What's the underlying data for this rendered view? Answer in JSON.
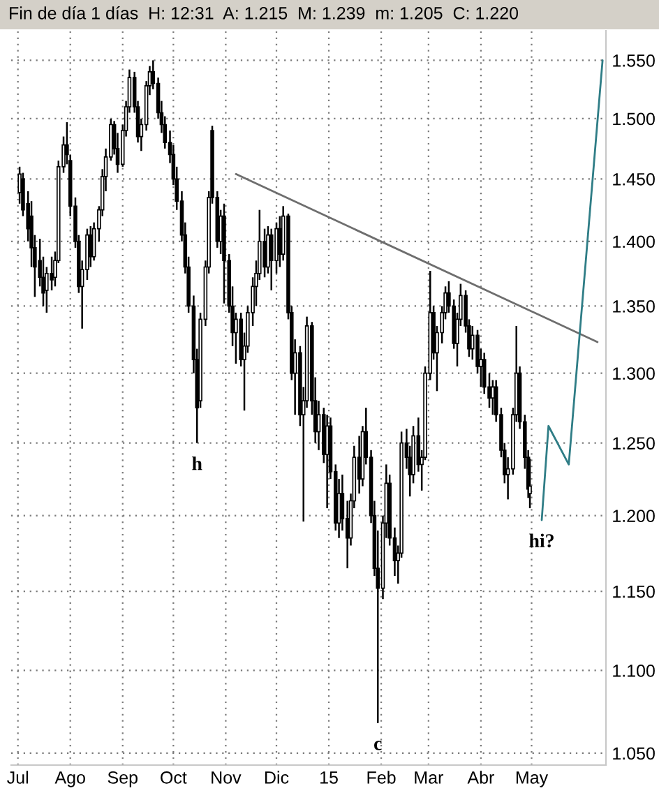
{
  "chart_data": {
    "type": "candlestick",
    "title": "Fin de día 1 días  H: 12:31  A: 1.215  M: 1.239  m: 1.205  C: 1.220",
    "x": [
      "2014-07-02",
      "2014-07-04",
      "2014-07-07",
      "2014-07-09",
      "2014-07-11",
      "2014-07-14",
      "2014-07-16",
      "2014-07-18",
      "2014-07-21",
      "2014-07-23",
      "2014-07-25",
      "2014-07-28",
      "2014-07-30",
      "2014-08-01",
      "2014-08-04",
      "2014-08-06",
      "2014-08-08",
      "2014-08-11",
      "2014-08-13",
      "2014-08-15",
      "2014-08-18",
      "2014-08-20",
      "2014-08-22",
      "2014-08-25",
      "2014-08-27",
      "2014-08-29",
      "2014-09-01",
      "2014-09-03",
      "2014-09-05",
      "2014-09-08",
      "2014-09-10",
      "2014-09-12",
      "2014-09-15",
      "2014-09-17",
      "2014-09-19",
      "2014-09-22",
      "2014-09-24",
      "2014-09-26",
      "2014-09-29",
      "2014-10-01",
      "2014-10-03",
      "2014-10-06",
      "2014-10-08",
      "2014-10-10",
      "2014-10-13",
      "2014-10-15",
      "2014-10-17",
      "2014-10-20",
      "2014-10-22",
      "2014-10-24",
      "2014-10-27",
      "2014-10-29",
      "2014-10-31",
      "2014-11-03",
      "2014-11-05",
      "2014-11-07",
      "2014-11-10",
      "2014-11-12",
      "2014-11-14",
      "2014-11-17",
      "2014-11-19",
      "2014-11-21",
      "2014-11-24",
      "2014-11-26",
      "2014-11-28",
      "2014-12-01",
      "2014-12-03",
      "2014-12-05",
      "2014-12-08",
      "2014-12-10",
      "2014-12-12",
      "2014-12-15",
      "2014-12-17",
      "2014-12-19",
      "2014-12-22",
      "2014-12-24",
      "2014-12-26",
      "2014-12-29",
      "2014-12-31",
      "2015-01-02",
      "2015-01-05",
      "2015-01-07",
      "2015-01-09",
      "2015-01-12",
      "2015-01-14",
      "2015-01-16",
      "2015-01-19",
      "2015-01-21",
      "2015-01-23",
      "2015-01-26",
      "2015-01-28",
      "2015-01-30",
      "2015-02-02",
      "2015-02-04",
      "2015-02-06",
      "2015-02-09",
      "2015-02-11",
      "2015-02-13",
      "2015-02-16",
      "2015-02-18",
      "2015-02-20",
      "2015-02-23",
      "2015-02-25",
      "2015-02-27",
      "2015-03-02",
      "2015-03-04",
      "2015-03-06",
      "2015-03-09",
      "2015-03-11",
      "2015-03-13",
      "2015-03-16",
      "2015-03-18",
      "2015-03-20",
      "2015-03-23",
      "2015-03-25",
      "2015-03-27",
      "2015-03-30",
      "2015-04-01",
      "2015-04-03",
      "2015-04-06",
      "2015-04-08",
      "2015-04-10",
      "2015-04-13",
      "2015-04-15",
      "2015-04-17",
      "2015-04-20",
      "2015-04-22",
      "2015-04-24",
      "2015-04-27",
      "2015-04-29",
      "2015-04-30"
    ],
    "ohlc": [
      [
        1.439,
        1.46,
        1.43,
        1.454
      ],
      [
        1.45,
        1.455,
        1.42,
        1.425
      ],
      [
        1.43,
        1.44,
        1.4,
        1.41
      ],
      [
        1.42,
        1.432,
        1.38,
        1.395
      ],
      [
        1.395,
        1.405,
        1.357,
        1.38
      ],
      [
        1.385,
        1.402,
        1.365,
        1.372
      ],
      [
        1.372,
        1.388,
        1.35,
        1.36
      ],
      [
        1.362,
        1.38,
        1.345,
        1.375
      ],
      [
        1.375,
        1.388,
        1.362,
        1.37
      ],
      [
        1.372,
        1.392,
        1.365,
        1.385
      ],
      [
        1.385,
        1.465,
        1.383,
        1.46
      ],
      [
        1.46,
        1.485,
        1.455,
        1.478
      ],
      [
        1.478,
        1.497,
        1.462,
        1.47
      ],
      [
        1.465,
        1.47,
        1.42,
        1.428
      ],
      [
        1.428,
        1.435,
        1.395,
        1.4
      ],
      [
        1.4,
        1.405,
        1.36,
        1.365
      ],
      [
        1.365,
        1.385,
        1.333,
        1.378
      ],
      [
        1.378,
        1.41,
        1.37,
        1.405
      ],
      [
        1.405,
        1.412,
        1.38,
        1.388
      ],
      [
        1.388,
        1.415,
        1.385,
        1.41
      ],
      [
        1.41,
        1.428,
        1.4,
        1.425
      ],
      [
        1.425,
        1.458,
        1.42,
        1.452
      ],
      [
        1.452,
        1.475,
        1.44,
        1.468
      ],
      [
        1.468,
        1.5,
        1.465,
        1.495
      ],
      [
        1.495,
        1.498,
        1.47,
        1.475
      ],
      [
        1.475,
        1.488,
        1.455,
        1.462
      ],
      [
        1.462,
        1.495,
        1.46,
        1.49
      ],
      [
        1.49,
        1.515,
        1.485,
        1.51
      ],
      [
        1.51,
        1.542,
        1.505,
        1.535
      ],
      [
        1.535,
        1.54,
        1.505,
        1.51
      ],
      [
        1.51,
        1.515,
        1.48,
        1.485
      ],
      [
        1.485,
        1.5,
        1.473,
        1.495
      ],
      [
        1.495,
        1.532,
        1.49,
        1.528
      ],
      [
        1.528,
        1.545,
        1.52,
        1.54
      ],
      [
        1.54,
        1.55,
        1.525,
        1.53
      ],
      [
        1.53,
        1.535,
        1.5,
        1.505
      ],
      [
        1.505,
        1.515,
        1.488,
        1.495
      ],
      [
        1.495,
        1.502,
        1.475,
        1.48
      ],
      [
        1.48,
        1.49,
        1.463,
        1.47
      ],
      [
        1.47,
        1.478,
        1.445,
        1.45
      ],
      [
        1.45,
        1.46,
        1.425,
        1.432
      ],
      [
        1.432,
        1.44,
        1.4,
        1.405
      ],
      [
        1.405,
        1.415,
        1.375,
        1.38
      ],
      [
        1.38,
        1.388,
        1.345,
        1.35
      ],
      [
        1.35,
        1.358,
        1.3,
        1.31
      ],
      [
        1.31,
        1.318,
        1.25,
        1.275
      ],
      [
        1.28,
        1.345,
        1.275,
        1.34
      ],
      [
        1.34,
        1.385,
        1.335,
        1.38
      ],
      [
        1.38,
        1.44,
        1.375,
        1.435
      ],
      [
        1.49,
        1.494,
        1.43,
        1.435
      ],
      [
        1.435,
        1.44,
        1.395,
        1.4
      ],
      [
        1.4,
        1.425,
        1.39,
        1.42
      ],
      [
        1.42,
        1.43,
        1.352,
        1.385
      ],
      [
        1.385,
        1.39,
        1.345,
        1.35
      ],
      [
        1.35,
        1.365,
        1.32,
        1.33
      ],
      [
        1.33,
        1.345,
        1.307,
        1.34
      ],
      [
        1.34,
        1.345,
        1.305,
        1.31
      ],
      [
        1.31,
        1.33,
        1.273,
        1.32
      ],
      [
        1.32,
        1.35,
        1.315,
        1.345
      ],
      [
        1.345,
        1.372,
        1.335,
        1.365
      ],
      [
        1.365,
        1.385,
        1.35,
        1.375
      ],
      [
        1.375,
        1.425,
        1.37,
        1.4
      ],
      [
        1.4,
        1.41,
        1.372,
        1.38
      ],
      [
        1.38,
        1.412,
        1.375,
        1.405
      ],
      [
        1.405,
        1.41,
        1.362,
        1.385
      ],
      [
        1.385,
        1.415,
        1.375,
        1.41
      ],
      [
        1.41,
        1.42,
        1.38,
        1.39
      ],
      [
        1.39,
        1.428,
        1.385,
        1.42
      ],
      [
        1.42,
        1.422,
        1.34,
        1.345
      ],
      [
        1.345,
        1.35,
        1.295,
        1.3
      ],
      [
        1.3,
        1.325,
        1.27,
        1.315
      ],
      [
        1.315,
        1.32,
        1.262,
        1.27
      ],
      [
        1.27,
        1.29,
        1.196,
        1.28
      ],
      [
        1.28,
        1.342,
        1.275,
        1.335
      ],
      [
        1.335,
        1.338,
        1.27,
        1.28
      ],
      [
        1.28,
        1.297,
        1.25,
        1.258
      ],
      [
        1.258,
        1.28,
        1.245,
        1.27
      ],
      [
        1.27,
        1.275,
        1.236,
        1.242
      ],
      [
        1.242,
        1.27,
        1.205,
        1.262
      ],
      [
        1.262,
        1.268,
        1.225,
        1.23
      ],
      [
        1.23,
        1.235,
        1.19,
        1.195
      ],
      [
        1.195,
        1.225,
        1.185,
        1.215
      ],
      [
        1.215,
        1.228,
        1.19,
        1.198
      ],
      [
        1.198,
        1.21,
        1.165,
        1.185
      ],
      [
        1.185,
        1.215,
        1.18,
        1.21
      ],
      [
        1.21,
        1.248,
        1.205,
        1.24
      ],
      [
        1.24,
        1.255,
        1.215,
        1.225
      ],
      [
        1.225,
        1.262,
        1.22,
        1.258
      ],
      [
        1.258,
        1.275,
        1.235,
        1.24
      ],
      [
        1.24,
        1.245,
        1.195,
        1.2
      ],
      [
        1.2,
        1.21,
        1.16,
        1.165
      ],
      [
        1.165,
        1.19,
        1.068,
        1.152
      ],
      [
        1.152,
        1.2,
        1.145,
        1.195
      ],
      [
        1.195,
        1.235,
        1.185,
        1.222
      ],
      [
        1.222,
        1.228,
        1.18,
        1.185
      ],
      [
        1.185,
        1.192,
        1.16,
        1.17
      ],
      [
        1.17,
        1.18,
        1.155,
        1.175
      ],
      [
        1.175,
        1.258,
        1.172,
        1.25
      ],
      [
        1.25,
        1.26,
        1.232,
        1.24
      ],
      [
        1.24,
        1.248,
        1.213,
        1.228
      ],
      [
        1.228,
        1.262,
        1.222,
        1.255
      ],
      [
        1.255,
        1.268,
        1.23,
        1.235
      ],
      [
        1.235,
        1.245,
        1.217,
        1.24
      ],
      [
        1.24,
        1.305,
        1.238,
        1.3
      ],
      [
        1.3,
        1.377,
        1.295,
        1.345
      ],
      [
        1.345,
        1.35,
        1.31,
        1.315
      ],
      [
        1.315,
        1.335,
        1.287,
        1.33
      ],
      [
        1.33,
        1.35,
        1.322,
        1.345
      ],
      [
        1.345,
        1.365,
        1.34,
        1.36
      ],
      [
        1.36,
        1.369,
        1.345,
        1.35
      ],
      [
        1.35,
        1.355,
        1.318,
        1.322
      ],
      [
        1.322,
        1.345,
        1.305,
        1.34
      ],
      [
        1.34,
        1.367,
        1.335,
        1.358
      ],
      [
        1.358,
        1.362,
        1.33,
        1.335
      ],
      [
        1.335,
        1.34,
        1.312,
        1.318
      ],
      [
        1.318,
        1.335,
        1.31,
        1.328
      ],
      [
        1.328,
        1.332,
        1.3,
        1.305
      ],
      [
        1.305,
        1.318,
        1.29,
        1.31
      ],
      [
        1.31,
        1.315,
        1.285,
        1.29
      ],
      [
        1.29,
        1.3,
        1.275,
        1.282
      ],
      [
        1.282,
        1.295,
        1.27,
        1.29
      ],
      [
        1.29,
        1.295,
        1.265,
        1.27
      ],
      [
        1.27,
        1.275,
        1.24,
        1.245
      ],
      [
        1.245,
        1.25,
        1.222,
        1.228
      ],
      [
        1.228,
        1.24,
        1.211,
        1.232
      ],
      [
        1.232,
        1.275,
        1.228,
        1.27
      ],
      [
        1.27,
        1.335,
        1.265,
        1.3
      ],
      [
        1.3,
        1.305,
        1.26,
        1.265
      ],
      [
        1.265,
        1.27,
        1.232,
        1.24
      ],
      [
        1.24,
        1.245,
        1.212,
        1.218
      ],
      [
        1.215,
        1.239,
        1.205,
        1.22
      ]
    ],
    "series": [
      {
        "type": "line",
        "x": [
          "2014-11-07",
          "2015-06-09"
        ],
        "values": [
          1.454,
          1.323
        ],
        "color": "#6e6e6e"
      },
      {
        "type": "line",
        "x": [
          "2015-05-07",
          "2015-05-11",
          "2015-05-23",
          "2015-06-12"
        ],
        "values": [
          1.197,
          1.262,
          1.235,
          1.55
        ],
        "color": "#2f7d86"
      }
    ],
    "xlim": [
      "2014-06-27",
      "2015-06-14"
    ],
    "xticks": [
      {
        "value": "2014-07-01",
        "label": "Jul"
      },
      {
        "value": "2014-08-01",
        "label": "Ago"
      },
      {
        "value": "2014-09-01",
        "label": "Sep"
      },
      {
        "value": "2014-10-01",
        "label": "Oct"
      },
      {
        "value": "2014-11-01",
        "label": "Nov"
      },
      {
        "value": "2014-12-01",
        "label": "Dic"
      },
      {
        "value": "2015-01-01",
        "label": "15"
      },
      {
        "value": "2015-02-01",
        "label": "Feb"
      },
      {
        "value": "2015-03-01",
        "label": "Mar"
      },
      {
        "value": "2015-04-01",
        "label": "Abr"
      },
      {
        "value": "2015-05-01",
        "label": "May"
      }
    ],
    "ylim": [
      1.043,
      1.576
    ],
    "yticks": [
      {
        "value": 1.05,
        "label": "1.050"
      },
      {
        "value": 1.1,
        "label": "1.100"
      },
      {
        "value": 1.15,
        "label": "1.150"
      },
      {
        "value": 1.2,
        "label": "1.200"
      },
      {
        "value": 1.25,
        "label": "1.250"
      },
      {
        "value": 1.3,
        "label": "1.300"
      },
      {
        "value": 1.35,
        "label": "1.350"
      },
      {
        "value": 1.4,
        "label": "1.400"
      },
      {
        "value": 1.45,
        "label": "1.450"
      },
      {
        "value": 1.5,
        "label": "1.500"
      },
      {
        "value": 1.55,
        "label": "1.550"
      }
    ],
    "log": "y",
    "grid": true,
    "annotations": [
      {
        "text": "h",
        "x": "2014-10-15",
        "y": 1.25
      },
      {
        "text": "c",
        "x": "2015-01-30",
        "y": 1.068
      },
      {
        "text": "hi?",
        "x": "2015-05-07",
        "y": 1.197
      }
    ]
  }
}
